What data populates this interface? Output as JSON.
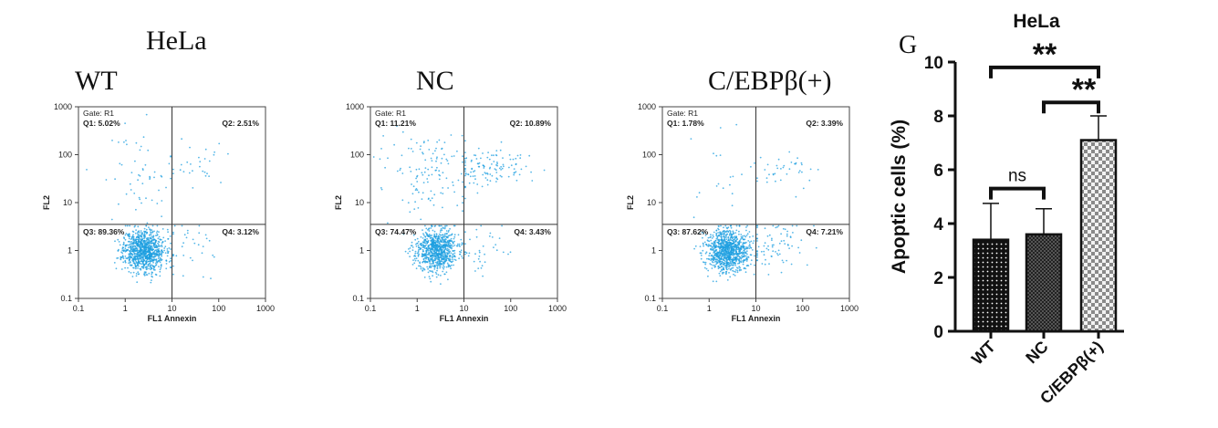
{
  "figure": {
    "left_title": "HeLa",
    "panel_letter": "G"
  },
  "chart_data": [
    {
      "type": "scatter",
      "panel": "WT",
      "title": "WT",
      "gate": "Gate: R1",
      "xlabel": "FL1  Annexin",
      "ylabel": "FL2",
      "x_scale": "log",
      "y_scale": "log",
      "xlim": [
        0.1,
        1000
      ],
      "ylim": [
        0.1,
        1000
      ],
      "x_ticks": [
        "0.1",
        "1",
        "10",
        "100",
        "1000"
      ],
      "y_ticks": [
        "1000",
        "100",
        "10",
        "1",
        "0.1"
      ],
      "gate_lines": {
        "x": 10,
        "y": 3.5
      },
      "quadrants": {
        "Q1": "Q1: 5.02%",
        "Q2": "Q2: 2.51%",
        "Q3": "Q3: 89.36%",
        "Q4": "Q4: 3.12%"
      },
      "color": "#1e9fe0"
    },
    {
      "type": "scatter",
      "panel": "NC",
      "title": "NC",
      "gate": "Gate: R1",
      "xlabel": "FL1  Annexin",
      "ylabel": "FL2",
      "x_scale": "log",
      "y_scale": "log",
      "xlim": [
        0.1,
        1000
      ],
      "ylim": [
        0.1,
        1000
      ],
      "x_ticks": [
        "0.1",
        "1",
        "10",
        "100",
        "1000"
      ],
      "y_ticks": [
        "1000",
        "100",
        "10",
        "1",
        "0.1"
      ],
      "gate_lines": {
        "x": 10,
        "y": 3.5
      },
      "quadrants": {
        "Q1": "Q1: 11.21%",
        "Q2": "Q2: 10.89%",
        "Q3": "Q3: 74.47%",
        "Q4": "Q4: 3.43%"
      },
      "color": "#1e9fe0"
    },
    {
      "type": "scatter",
      "panel": "C/EBPβ(+)",
      "title": "C/EBPβ(+)",
      "gate": "Gate: R1",
      "xlabel": "FL1  Annexin",
      "ylabel": "FL2",
      "x_scale": "log",
      "y_scale": "log",
      "xlim": [
        0.1,
        1000
      ],
      "ylim": [
        0.1,
        1000
      ],
      "x_ticks": [
        "0.1",
        "1",
        "10",
        "100",
        "1000"
      ],
      "y_ticks": [
        "1000",
        "100",
        "10",
        "1",
        "0.1"
      ],
      "gate_lines": {
        "x": 10,
        "y": 3.5
      },
      "quadrants": {
        "Q1": "Q1: 1.78%",
        "Q2": "Q2: 3.39%",
        "Q3": "Q3: 87.62%",
        "Q4": "Q4: 7.21%"
      },
      "color": "#1e9fe0"
    },
    {
      "type": "bar",
      "title": "HeLa",
      "ylabel": "Apoptic cells (%)",
      "xlabel": "",
      "categories": [
        "WT",
        "NC",
        "C/EBPβ(+)"
      ],
      "values": [
        3.4,
        3.6,
        7.1
      ],
      "errors": [
        1.35,
        0.95,
        0.9
      ],
      "ylim": [
        0,
        10
      ],
      "y_ticks": [
        0,
        2,
        4,
        6,
        8,
        10
      ],
      "patterns": [
        "dots",
        "fine-check",
        "check"
      ],
      "comparisons": [
        {
          "from": 0,
          "to": 1,
          "label": "ns"
        },
        {
          "from": 1,
          "to": 2,
          "label": "**"
        },
        {
          "from": 0,
          "to": 2,
          "label": "**"
        }
      ]
    }
  ]
}
